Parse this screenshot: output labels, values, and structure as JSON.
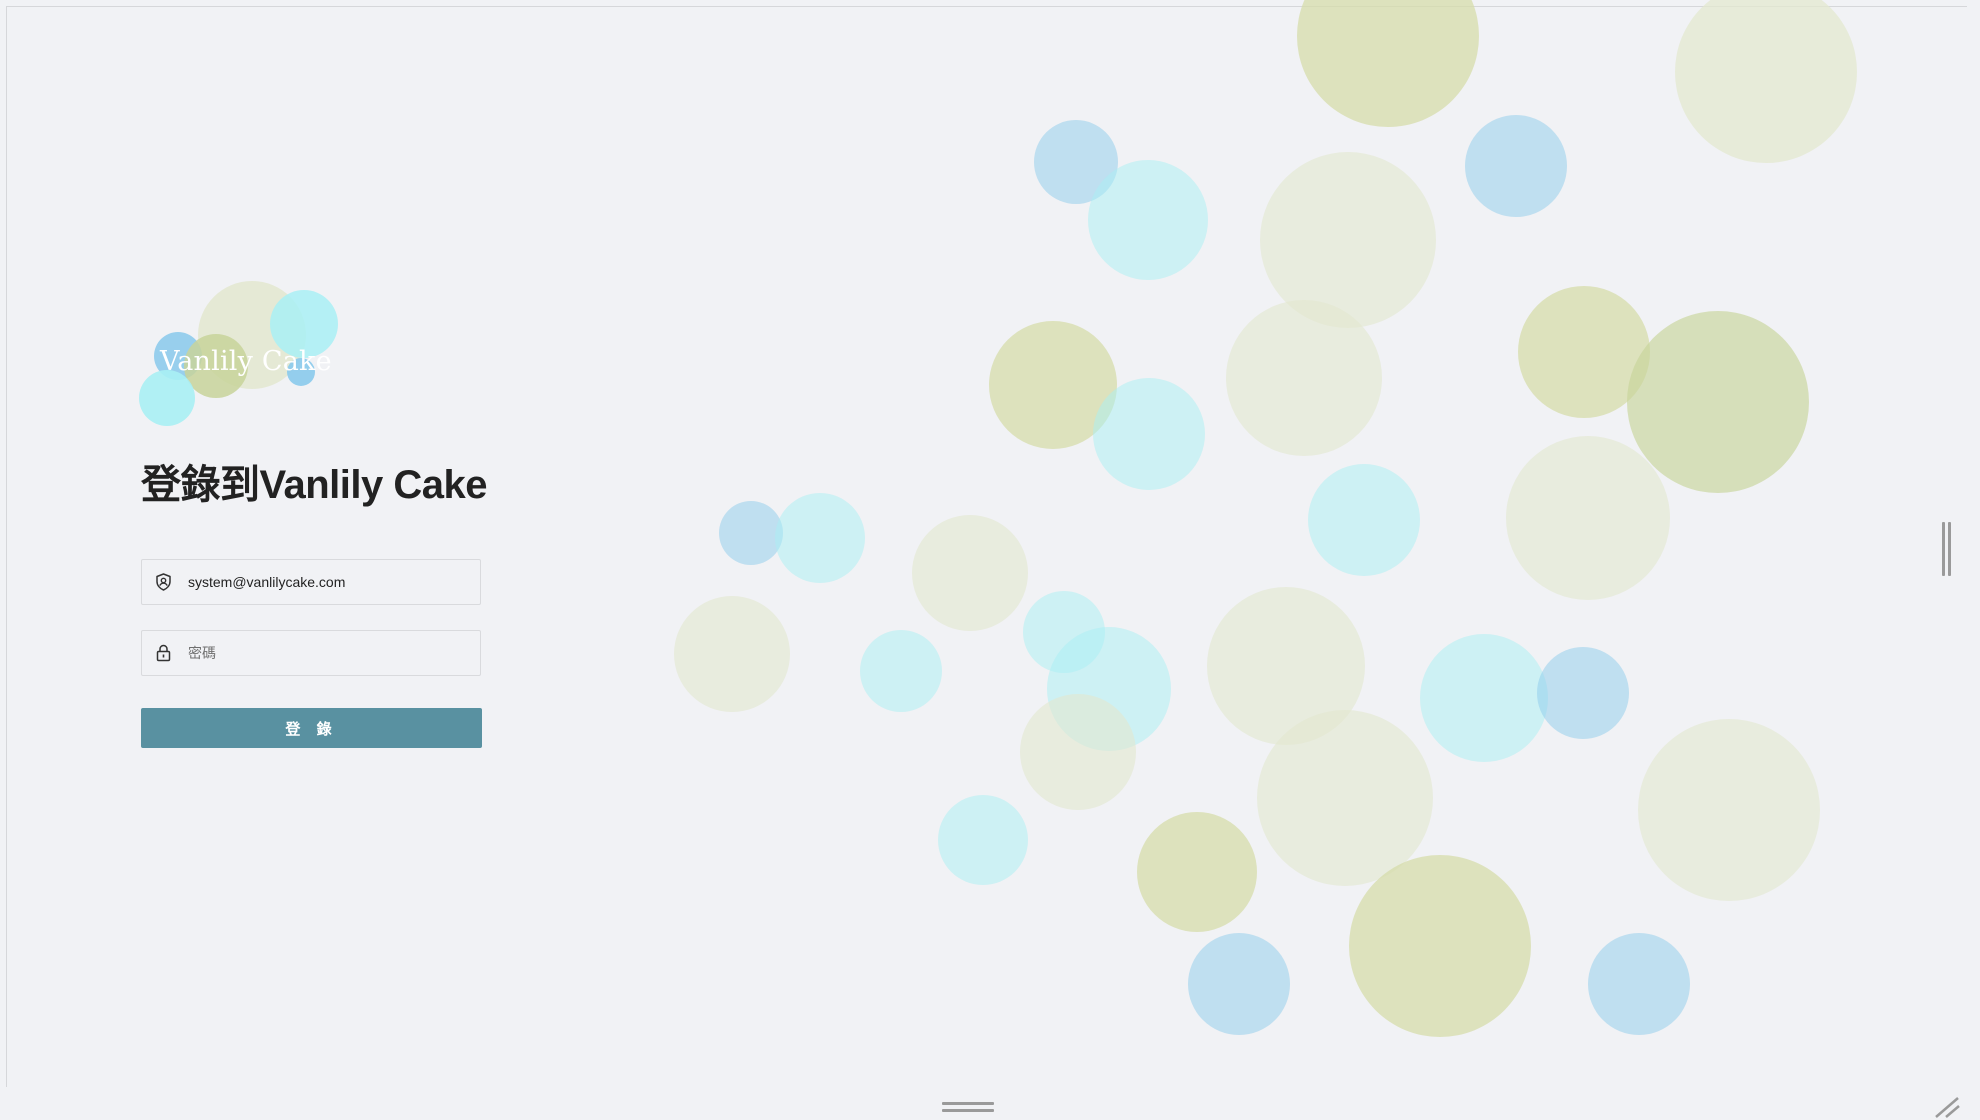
{
  "brand": {
    "logo_text": "Vanlily Cake"
  },
  "login": {
    "title": "登錄到Vanlily Cake",
    "email_value": "system@vanlilycake.com",
    "password_placeholder": "密碼",
    "submit_label": "登 錄"
  },
  "icons": {
    "email": "shield-user-icon",
    "password": "lock-icon"
  },
  "colors": {
    "background": "#f1f2f5",
    "button": "#5991a1",
    "bubble_olive": "#c8d49a",
    "bubble_pale": "#e3e8cf",
    "bubble_cyan": "#a9f0f4",
    "bubble_blue": "#8ecbec"
  }
}
